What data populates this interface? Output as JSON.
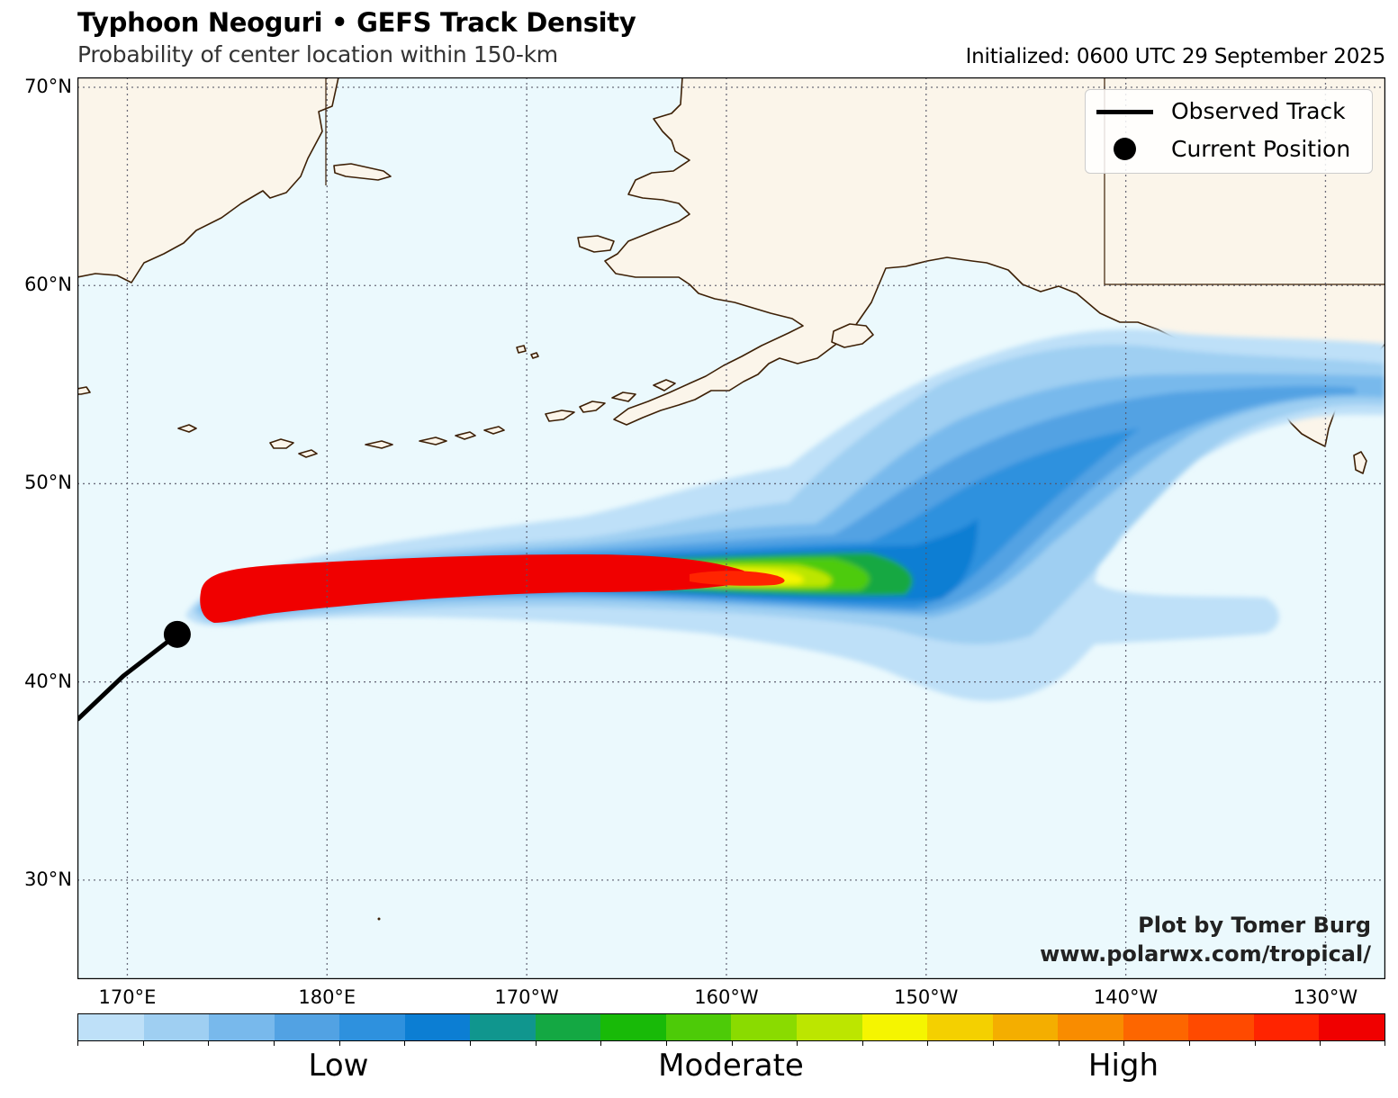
{
  "header": {
    "title": "Typhoon Neoguri • GEFS Track Density",
    "subtitle": "Probability of center location within 150-km",
    "initialized": "Initialized: 0600 UTC 29 September 2025"
  },
  "map": {
    "lon_range": [
      167.5,
      233.0
    ],
    "lat_range": [
      25.0,
      70.5
    ],
    "ocean_color": "#ebf9fd",
    "land_color": "#fbf5ea",
    "coast_color": "#3d2006",
    "lat_labels": [
      "70°N",
      "60°N",
      "50°N",
      "40°N",
      "30°N"
    ],
    "lon_labels": [
      "170°E",
      "180°E",
      "170°W",
      "160°W",
      "150°W",
      "140°W",
      "130°W"
    ],
    "lat_values": [
      70,
      60,
      50,
      40,
      30
    ],
    "lon_values": [
      170,
      180,
      190,
      200,
      210,
      220,
      230
    ]
  },
  "legend": {
    "observed_track": "Observed Track",
    "current_position": "Current Position"
  },
  "storm": {
    "observed_track": [
      [
        167.5,
        38.1
      ],
      [
        169.8,
        40.3
      ],
      [
        172.5,
        42.4
      ]
    ],
    "current_position": [
      172.5,
      42.4
    ]
  },
  "credit": {
    "line1": "Plot by Tomer Burg",
    "line2": "www.polarwx.com/tropical/"
  },
  "colorbar": {
    "colors": [
      "#bee0f8",
      "#9fcff2",
      "#78b9ec",
      "#52a2e3",
      "#2e91de",
      "#0c7ed3",
      "#10968e",
      "#14a843",
      "#18ba08",
      "#4dcb08",
      "#8adb00",
      "#bce600",
      "#f5f500",
      "#f4d000",
      "#f4ae00",
      "#f98c00",
      "#fd6600",
      "#ff4a00",
      "#ff2400",
      "#f00000"
    ],
    "labels": [
      "Low",
      "Moderate",
      "High"
    ]
  }
}
